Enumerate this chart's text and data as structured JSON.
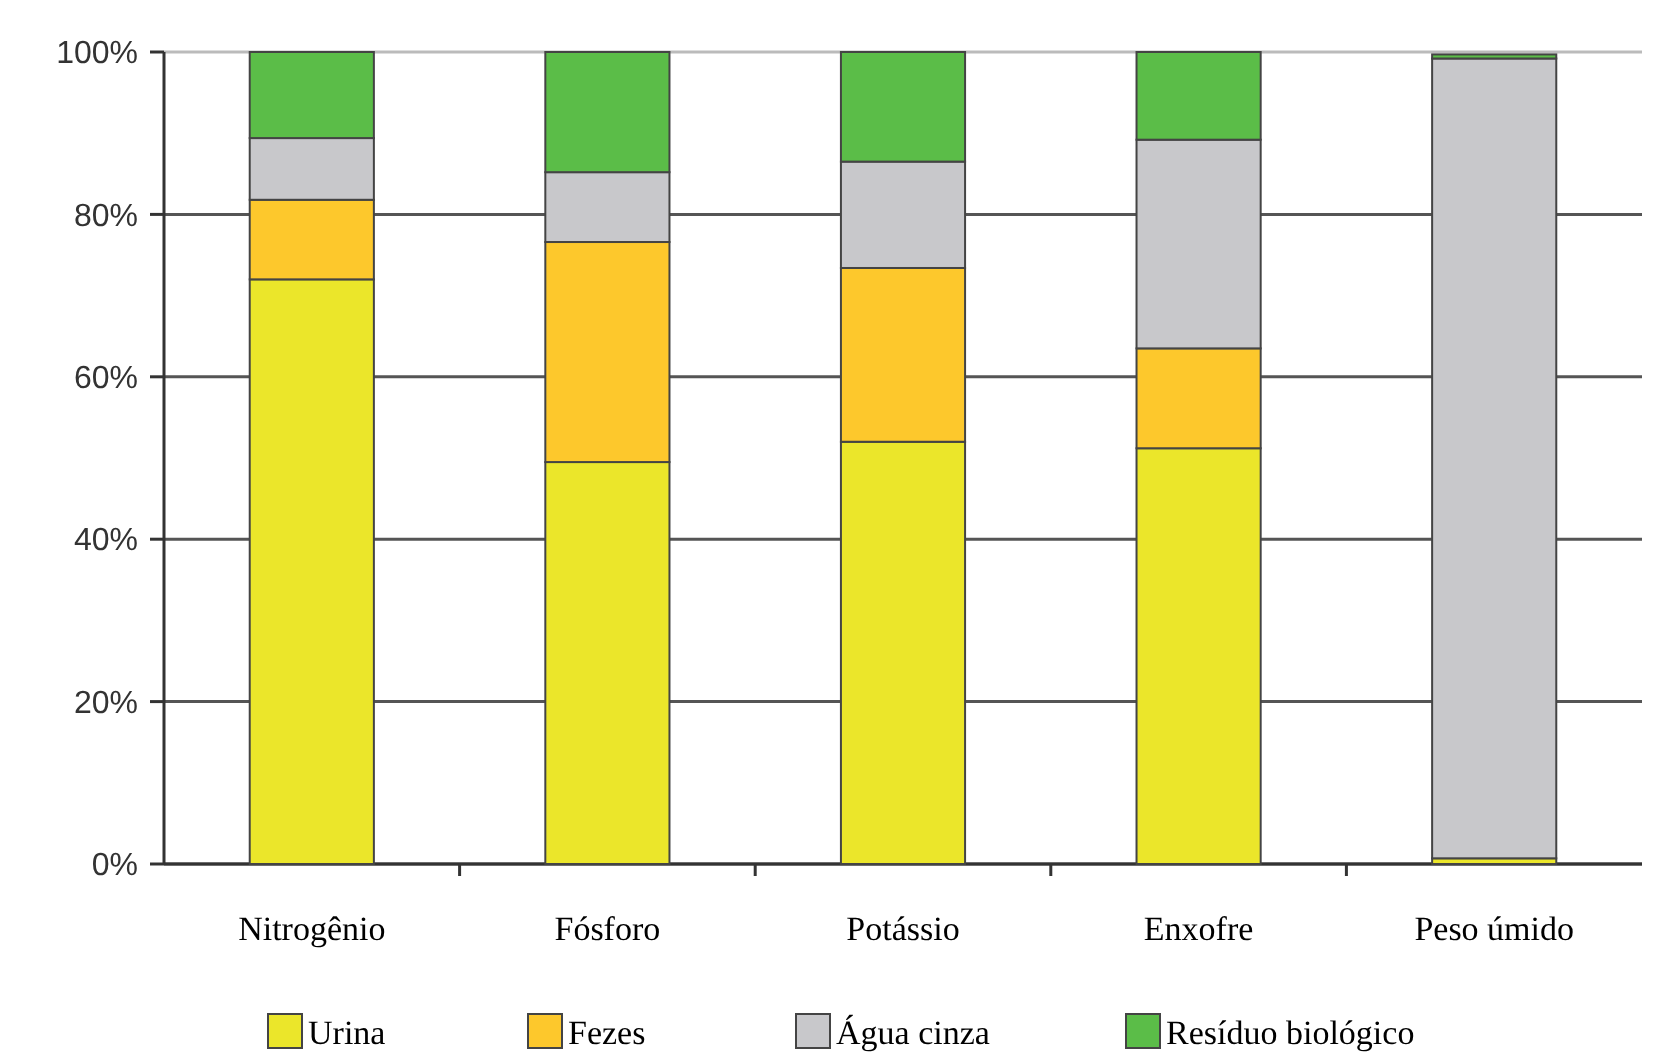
{
  "chart_data": {
    "type": "bar",
    "stacked": true,
    "categories": [
      "Nitrogênio",
      "Fósforo",
      "Potássio",
      "Enxofre",
      "Peso úmido"
    ],
    "series": [
      {
        "name": "Urina",
        "color": "#ebe62a",
        "values": [
          72,
          49.5,
          52,
          51.2,
          0.7
        ]
      },
      {
        "name": "Fezes",
        "color": "#fdc82c",
        "values": [
          9.8,
          27.1,
          21.4,
          12.3,
          null
        ]
      },
      {
        "name": "Água cinza",
        "color": "#c8c8cb",
        "values": [
          7.6,
          8.6,
          13.1,
          25.7,
          98.5
        ]
      },
      {
        "name": "Resíduo biológico",
        "color": "#5bbd48",
        "values": [
          10.6,
          14.8,
          13.5,
          10.8,
          0.5
        ]
      }
    ],
    "ylim": [
      0,
      100
    ],
    "yticks": [
      {
        "value": 0,
        "label": "0%"
      },
      {
        "value": 20,
        "label": "20%"
      },
      {
        "value": 40,
        "label": "40%"
      },
      {
        "value": 60,
        "label": "60%"
      },
      {
        "value": 80,
        "label": "80%"
      },
      {
        "value": 100,
        "label": "100%"
      }
    ],
    "grid": "y",
    "legend": "bottom"
  }
}
